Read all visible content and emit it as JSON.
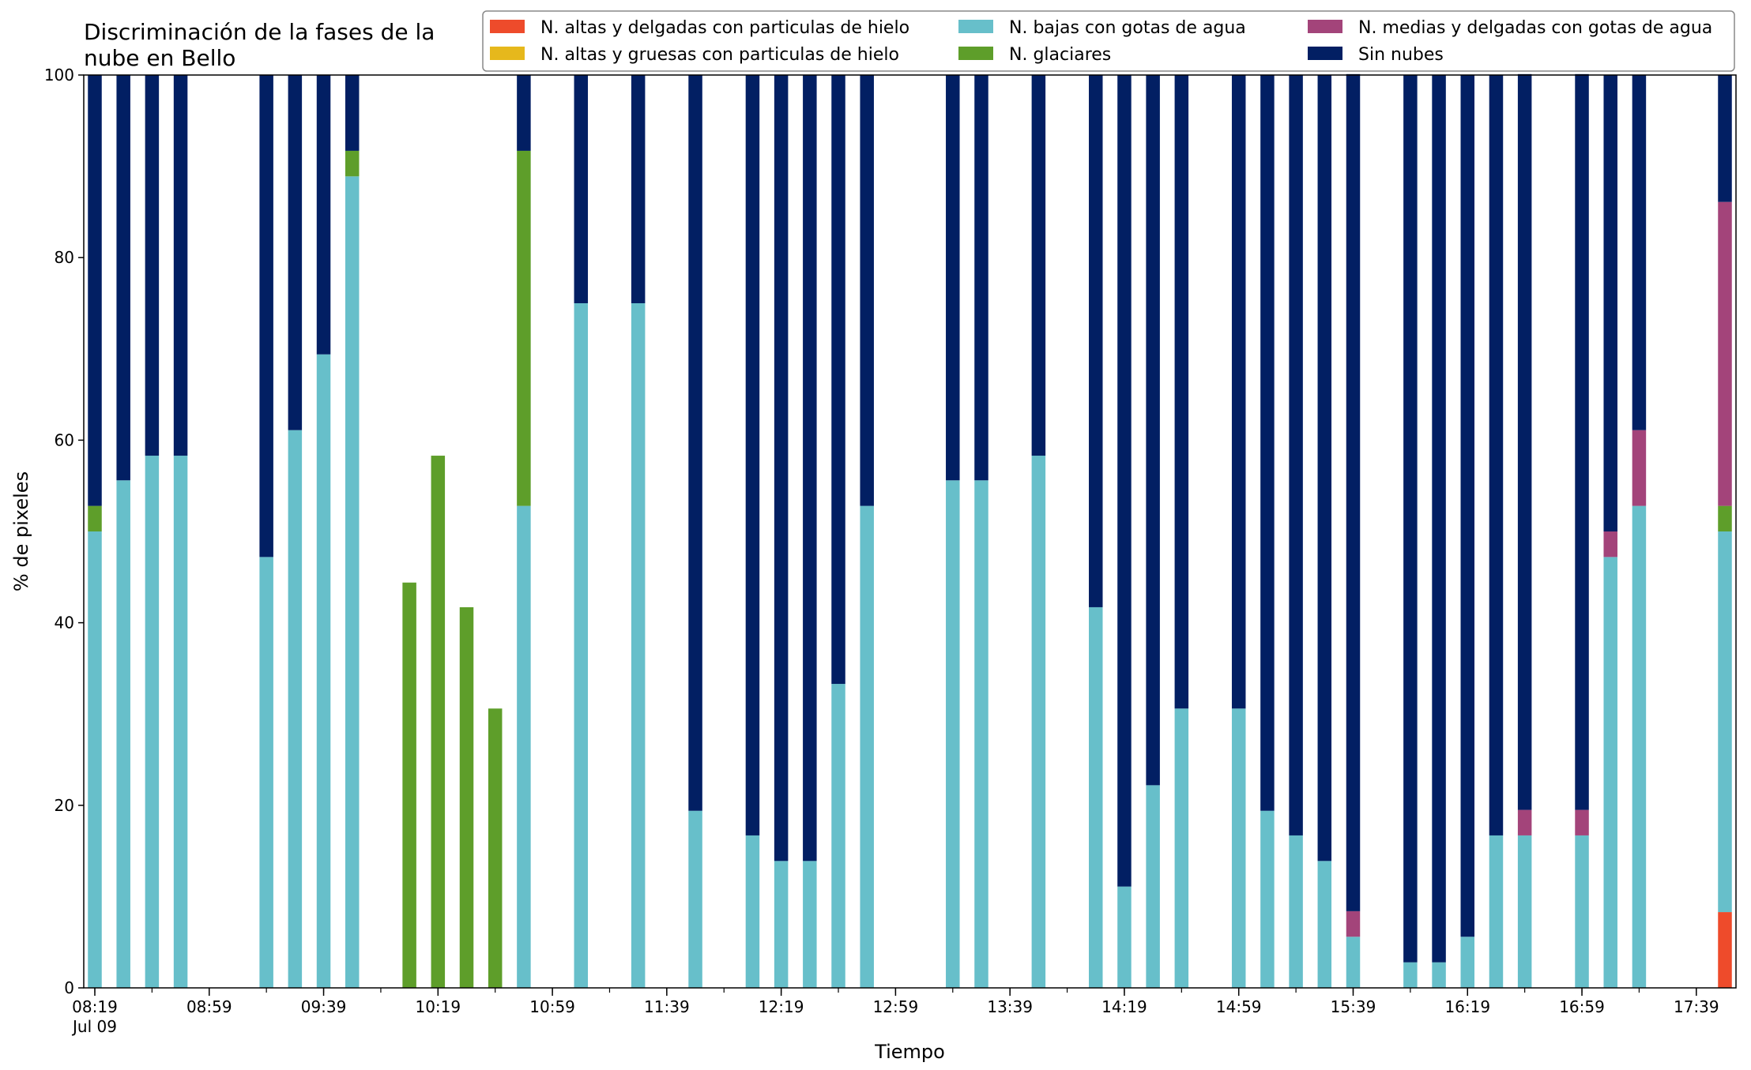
{
  "chart_data": {
    "type": "bar",
    "stacked": true,
    "title_lines": [
      "Discriminación de la fases de la",
      "nube en Bello"
    ],
    "xlabel": "Tiempo",
    "ylabel": "% de pixeles",
    "ylim": [
      0,
      100
    ],
    "yticks": [
      0,
      20,
      40,
      60,
      80,
      100
    ],
    "x_start": "08:19",
    "x_step_minutes": 10,
    "x_count": 58,
    "x_date_label": "Jul 09",
    "xtick_labels": [
      "08:19",
      "08:59",
      "09:39",
      "10:19",
      "10:59",
      "11:39",
      "12:19",
      "12:59",
      "13:39",
      "14:19",
      "14:59",
      "15:39",
      "16:19",
      "16:59",
      "17:39"
    ],
    "grid": false,
    "legend_position": "top-right",
    "series": [
      {
        "name": "N. altas y delgadas con particulas de hielo",
        "color": "#ee4b2b",
        "values": [
          0,
          0,
          0,
          0,
          null,
          null,
          0,
          0,
          0,
          0,
          null,
          0,
          0,
          0,
          0,
          0,
          null,
          0,
          null,
          0,
          null,
          0,
          null,
          0,
          0,
          0,
          0,
          0,
          null,
          null,
          0,
          0,
          null,
          0,
          null,
          0,
          0,
          0,
          0,
          null,
          0,
          0,
          0,
          0,
          0,
          null,
          0,
          0,
          0,
          0,
          0,
          null,
          0,
          0,
          0,
          null,
          null,
          8.3
        ]
      },
      {
        "name": "N. altas y gruesas con particulas de hielo",
        "color": "#e6b81c",
        "values": [
          0,
          0,
          0,
          0,
          null,
          null,
          0,
          0,
          0,
          0,
          null,
          0,
          0,
          0,
          0,
          0,
          null,
          0,
          null,
          0,
          null,
          0,
          null,
          0,
          0,
          0,
          0,
          0,
          null,
          null,
          0,
          0,
          null,
          0,
          null,
          0,
          0,
          0,
          0,
          null,
          0,
          0,
          0,
          0,
          0,
          null,
          0,
          0,
          0,
          0,
          0,
          null,
          0,
          0,
          0,
          null,
          null,
          0
        ]
      },
      {
        "name": "N. bajas con gotas de agua",
        "color": "#67bfca",
        "values": [
          50,
          55.6,
          58.3,
          58.3,
          null,
          null,
          47.2,
          61.1,
          69.4,
          88.9,
          null,
          0,
          0,
          0,
          0,
          52.8,
          null,
          75,
          null,
          75,
          null,
          19.4,
          null,
          16.7,
          13.9,
          13.9,
          33.3,
          52.8,
          null,
          null,
          55.6,
          55.6,
          null,
          58.3,
          null,
          41.7,
          11.1,
          22.2,
          30.6,
          null,
          30.6,
          19.4,
          16.7,
          13.9,
          5.6,
          null,
          2.8,
          2.8,
          5.6,
          16.7,
          16.7,
          null,
          16.7,
          47.2,
          52.8,
          null,
          null,
          41.7
        ]
      },
      {
        "name": "N. glaciares",
        "color": "#5e9e2a",
        "values": [
          2.8,
          0,
          0,
          0,
          null,
          null,
          0,
          0,
          0,
          2.8,
          null,
          44.4,
          58.3,
          41.7,
          30.6,
          38.9,
          null,
          0,
          null,
          0,
          null,
          0,
          null,
          0,
          0,
          0,
          0,
          0,
          null,
          null,
          0,
          0,
          null,
          0,
          null,
          0,
          0,
          0,
          0,
          null,
          0,
          0,
          0,
          0,
          0,
          null,
          0,
          0,
          0,
          0,
          0,
          null,
          0,
          0,
          0,
          null,
          null,
          2.8
        ]
      },
      {
        "name": "N. medias y delgadas con gotas de agua",
        "color": "#a3447a",
        "values": [
          0,
          0,
          0,
          0,
          null,
          null,
          0,
          0,
          0,
          0,
          null,
          0,
          0,
          0,
          0,
          0,
          null,
          0,
          null,
          0,
          null,
          0,
          null,
          0,
          0,
          0,
          0,
          0,
          null,
          null,
          0,
          0,
          null,
          0,
          null,
          0,
          0,
          0,
          0,
          null,
          0,
          0,
          0,
          0,
          2.8,
          null,
          0,
          0,
          0,
          0,
          2.8,
          null,
          2.8,
          2.8,
          8.3,
          null,
          null,
          33.3
        ]
      },
      {
        "name": "Sin nubes",
        "color": "#021f63",
        "values": [
          47.2,
          44.4,
          41.7,
          41.7,
          null,
          null,
          52.8,
          38.9,
          30.6,
          8.3,
          null,
          0,
          0,
          0,
          0,
          8.3,
          null,
          25,
          null,
          25,
          null,
          80.6,
          null,
          83.3,
          86.1,
          86.1,
          66.7,
          47.2,
          null,
          null,
          44.4,
          44.4,
          null,
          41.7,
          null,
          58.3,
          88.9,
          77.8,
          69.4,
          null,
          69.4,
          80.6,
          83.3,
          86.1,
          91.7,
          null,
          97.2,
          97.2,
          94.4,
          83.3,
          80.6,
          null,
          80.6,
          50,
          38.9,
          null,
          null,
          13.9
        ]
      }
    ]
  }
}
